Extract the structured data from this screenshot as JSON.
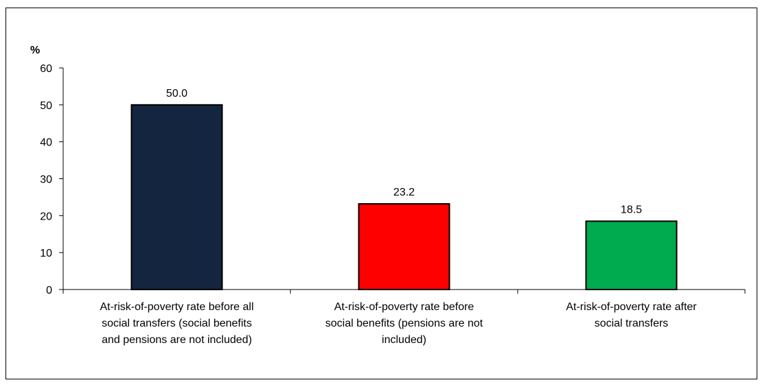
{
  "chart_data": {
    "type": "bar",
    "title": "",
    "xlabel": "",
    "ylabel": "%",
    "ylim": [
      0,
      60
    ],
    "yticks": [
      0,
      10,
      20,
      30,
      40,
      50,
      60
    ],
    "grid": false,
    "legend": "none",
    "categories": [
      "At-risk-of-poverty rate before all social transfers (social benefits and pensions are not included)",
      "At-risk-of-poverty rate before social benefits (pensions are not included)",
      "At-risk-of-poverty rate  after social transfers"
    ],
    "category_lines": [
      [
        "At-risk-of-poverty rate before all",
        "social transfers (social benefits",
        "and pensions are not included)"
      ],
      [
        "At-risk-of-poverty rate before",
        "social benefits (pensions are not",
        "included)"
      ],
      [
        "At-risk-of-poverty rate  after",
        "social transfers"
      ]
    ],
    "values": [
      50.0,
      23.2,
      18.5
    ],
    "value_labels": [
      "50.0",
      "23.2",
      "18.5"
    ],
    "colors": [
      "#14253F",
      "#FF0000",
      "#00AA4F"
    ]
  }
}
